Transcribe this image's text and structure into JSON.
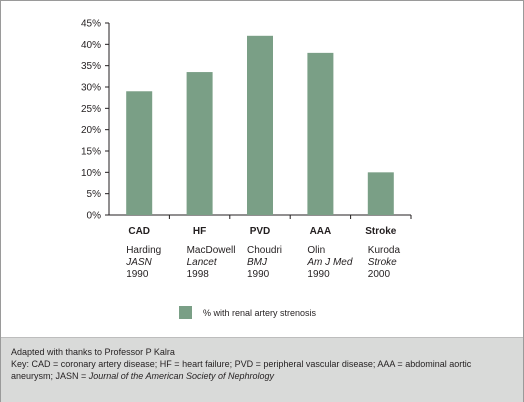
{
  "chart_data": {
    "type": "bar",
    "categories": [
      "CAD",
      "HF",
      "PVD",
      "AAA",
      "Stroke"
    ],
    "values": [
      29,
      33.5,
      42,
      38,
      10
    ],
    "ylim": [
      0,
      45
    ],
    "yticks": [
      0,
      5,
      10,
      15,
      20,
      25,
      30,
      35,
      40,
      45
    ],
    "ytick_labels": [
      "0%",
      "5%",
      "10%",
      "15%",
      "20%",
      "25%",
      "30%",
      "35%",
      "40%",
      "45%"
    ],
    "sources": [
      {
        "author": "Harding",
        "journal": "JASN",
        "year": "1990"
      },
      {
        "author": "MacDowell",
        "journal": "Lancet",
        "year": "1998"
      },
      {
        "author": "Choudri",
        "journal": "BMJ",
        "year": "1990"
      },
      {
        "author": "Olin",
        "journal": "Am J Med",
        "year": "1990"
      },
      {
        "author": "Kuroda",
        "journal": "Stroke",
        "year": "2000"
      }
    ],
    "legend": {
      "label": "% with renal artery strenosis",
      "placement": "bottom-center"
    },
    "grid": false,
    "bar_color": "#7a9f86"
  },
  "footer": {
    "credit": "Adapted with thanks to Professor P Kalra",
    "key_part1": "Key:  CAD = coronary artery disease; HF = heart failure; PVD = peripheral vascular disease; AAA = abdominal aortic aneurysm; JASN = ",
    "key_journal": "Journal of the American Society of Nephrology"
  }
}
